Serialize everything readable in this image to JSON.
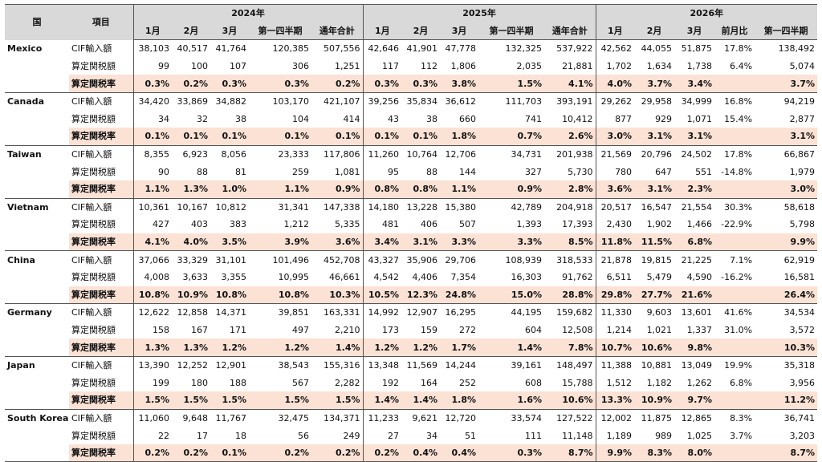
{
  "header": {
    "country_label": "国",
    "item_label": "項目",
    "years": [
      "2024年",
      "2025年",
      "2026年"
    ],
    "cols_2024": [
      "1月",
      "2月",
      "3月",
      "第一四半期",
      "通年合計"
    ],
    "cols_2025": [
      "1月",
      "2月",
      "3月",
      "第一四半期",
      "通年合計"
    ],
    "cols_2026": [
      "1月",
      "2月",
      "3月",
      "前月比",
      "第一四半期"
    ]
  },
  "rows": [
    {
      "country": "Mexico",
      "item": "CIF輸入額",
      "rate": false,
      "v": [
        "38,103",
        "40,517",
        "41,764",
        "120,385",
        "507,556",
        "42,646",
        "41,901",
        "47,778",
        "132,325",
        "537,922",
        "42,562",
        "44,055",
        "51,875",
        "17.8%",
        "138,492"
      ]
    },
    {
      "country": "",
      "item": "算定関税額",
      "rate": false,
      "v": [
        "99",
        "100",
        "107",
        "306",
        "1,251",
        "117",
        "112",
        "1,806",
        "2,035",
        "21,881",
        "1,702",
        "1,634",
        "1,738",
        "6.4%",
        "5,074"
      ]
    },
    {
      "country": "",
      "item": "算定関税率",
      "rate": true,
      "v": [
        "0.3%",
        "0.2%",
        "0.3%",
        "0.3%",
        "0.2%",
        "0.3%",
        "0.3%",
        "3.8%",
        "1.5%",
        "4.1%",
        "4.0%",
        "3.7%",
        "3.4%",
        "",
        "3.7%"
      ]
    },
    {
      "country": "Canada",
      "item": "CIF輸入額",
      "rate": false,
      "v": [
        "34,420",
        "33,869",
        "34,882",
        "103,170",
        "421,107",
        "39,256",
        "35,834",
        "36,612",
        "111,703",
        "393,191",
        "29,262",
        "29,958",
        "34,999",
        "16.8%",
        "94,219"
      ]
    },
    {
      "country": "",
      "item": "算定関税額",
      "rate": false,
      "v": [
        "34",
        "32",
        "38",
        "104",
        "414",
        "43",
        "38",
        "660",
        "741",
        "10,412",
        "877",
        "929",
        "1,071",
        "15.4%",
        "2,877"
      ]
    },
    {
      "country": "",
      "item": "算定関税率",
      "rate": true,
      "v": [
        "0.1%",
        "0.1%",
        "0.1%",
        "0.1%",
        "0.1%",
        "0.1%",
        "0.1%",
        "1.8%",
        "0.7%",
        "2.6%",
        "3.0%",
        "3.1%",
        "3.1%",
        "",
        "3.1%"
      ]
    },
    {
      "country": "Taiwan",
      "item": "CIF輸入額",
      "rate": false,
      "v": [
        "8,355",
        "6,923",
        "8,056",
        "23,333",
        "117,806",
        "11,260",
        "10,764",
        "12,706",
        "34,731",
        "201,938",
        "21,569",
        "20,796",
        "24,502",
        "17.8%",
        "66,867"
      ]
    },
    {
      "country": "",
      "item": "算定関税額",
      "rate": false,
      "v": [
        "90",
        "88",
        "81",
        "259",
        "1,081",
        "95",
        "88",
        "144",
        "327",
        "5,730",
        "780",
        "647",
        "551",
        "-14.8%",
        "1,979"
      ]
    },
    {
      "country": "",
      "item": "算定関税率",
      "rate": true,
      "v": [
        "1.1%",
        "1.3%",
        "1.0%",
        "1.1%",
        "0.9%",
        "0.8%",
        "0.8%",
        "1.1%",
        "0.9%",
        "2.8%",
        "3.6%",
        "3.1%",
        "2.3%",
        "",
        "3.0%"
      ]
    },
    {
      "country": "Vietnam",
      "item": "CIF輸入額",
      "rate": false,
      "v": [
        "10,361",
        "10,167",
        "10,812",
        "31,341",
        "147,338",
        "14,180",
        "13,228",
        "15,380",
        "42,789",
        "204,918",
        "20,517",
        "16,547",
        "21,554",
        "30.3%",
        "58,618"
      ]
    },
    {
      "country": "",
      "item": "算定関税額",
      "rate": false,
      "v": [
        "427",
        "403",
        "383",
        "1,212",
        "5,335",
        "481",
        "406",
        "507",
        "1,393",
        "17,393",
        "2,430",
        "1,902",
        "1,466",
        "-22.9%",
        "5,798"
      ]
    },
    {
      "country": "",
      "item": "算定関税率",
      "rate": true,
      "v": [
        "4.1%",
        "4.0%",
        "3.5%",
        "3.9%",
        "3.6%",
        "3.4%",
        "3.1%",
        "3.3%",
        "3.3%",
        "8.5%",
        "11.8%",
        "11.5%",
        "6.8%",
        "",
        "9.9%"
      ]
    },
    {
      "country": "China",
      "item": "CIF輸入額",
      "rate": false,
      "v": [
        "37,066",
        "33,329",
        "31,101",
        "101,496",
        "452,708",
        "43,327",
        "35,906",
        "29,706",
        "108,939",
        "318,533",
        "21,878",
        "19,815",
        "21,225",
        "7.1%",
        "62,919"
      ]
    },
    {
      "country": "",
      "item": "算定関税額",
      "rate": false,
      "v": [
        "4,008",
        "3,633",
        "3,355",
        "10,995",
        "46,661",
        "4,542",
        "4,406",
        "7,354",
        "16,303",
        "91,762",
        "6,511",
        "5,479",
        "4,590",
        "-16.2%",
        "16,581"
      ]
    },
    {
      "country": "",
      "item": "算定関税率",
      "rate": true,
      "v": [
        "10.8%",
        "10.9%",
        "10.8%",
        "10.8%",
        "10.3%",
        "10.5%",
        "12.3%",
        "24.8%",
        "15.0%",
        "28.8%",
        "29.8%",
        "27.7%",
        "21.6%",
        "",
        "26.4%"
      ]
    },
    {
      "country": "Germany",
      "item": "CIF輸入額",
      "rate": false,
      "v": [
        "12,622",
        "12,858",
        "14,371",
        "39,851",
        "163,331",
        "14,992",
        "12,907",
        "16,295",
        "44,195",
        "159,682",
        "11,330",
        "9,603",
        "13,601",
        "41.6%",
        "34,534"
      ]
    },
    {
      "country": "",
      "item": "算定関税額",
      "rate": false,
      "v": [
        "158",
        "167",
        "171",
        "497",
        "2,210",
        "173",
        "159",
        "272",
        "604",
        "12,508",
        "1,214",
        "1,021",
        "1,337",
        "31.0%",
        "3,572"
      ]
    },
    {
      "country": "",
      "item": "算定関税率",
      "rate": true,
      "v": [
        "1.3%",
        "1.3%",
        "1.2%",
        "1.2%",
        "1.4%",
        "1.2%",
        "1.2%",
        "1.7%",
        "1.4%",
        "7.8%",
        "10.7%",
        "10.6%",
        "9.8%",
        "",
        "10.3%"
      ]
    },
    {
      "country": "Japan",
      "item": "CIF輸入額",
      "rate": false,
      "v": [
        "13,390",
        "12,252",
        "12,901",
        "38,543",
        "155,316",
        "13,348",
        "11,569",
        "14,244",
        "39,161",
        "148,497",
        "11,388",
        "10,881",
        "13,049",
        "19.9%",
        "35,318"
      ]
    },
    {
      "country": "",
      "item": "算定関税額",
      "rate": false,
      "v": [
        "199",
        "180",
        "188",
        "567",
        "2,282",
        "192",
        "164",
        "252",
        "608",
        "15,788",
        "1,512",
        "1,182",
        "1,262",
        "6.8%",
        "3,956"
      ]
    },
    {
      "country": "",
      "item": "算定関税率",
      "rate": true,
      "v": [
        "1.5%",
        "1.5%",
        "1.5%",
        "1.5%",
        "1.5%",
        "1.4%",
        "1.4%",
        "1.8%",
        "1.6%",
        "10.6%",
        "13.3%",
        "10.9%",
        "9.7%",
        "",
        "11.2%"
      ]
    },
    {
      "country": "South Korea",
      "item": "CIF輸入額",
      "rate": false,
      "v": [
        "11,060",
        "9,648",
        "11,767",
        "32,475",
        "134,371",
        "11,233",
        "9,621",
        "12,720",
        "33,574",
        "127,522",
        "12,002",
        "11,875",
        "12,865",
        "8.3%",
        "36,741"
      ]
    },
    {
      "country": "",
      "item": "算定関税額",
      "rate": false,
      "v": [
        "22",
        "17",
        "18",
        "56",
        "249",
        "27",
        "34",
        "51",
        "111",
        "11,148",
        "1,189",
        "989",
        "1,025",
        "3.7%",
        "3,203"
      ]
    },
    {
      "country": "",
      "item": "算定関税率",
      "rate": true,
      "v": [
        "0.2%",
        "0.2%",
        "0.1%",
        "0.2%",
        "0.2%",
        "0.2%",
        "0.4%",
        "0.4%",
        "0.3%",
        "8.7%",
        "9.9%",
        "8.3%",
        "8.0%",
        "",
        "8.7%"
      ]
    }
  ]
}
